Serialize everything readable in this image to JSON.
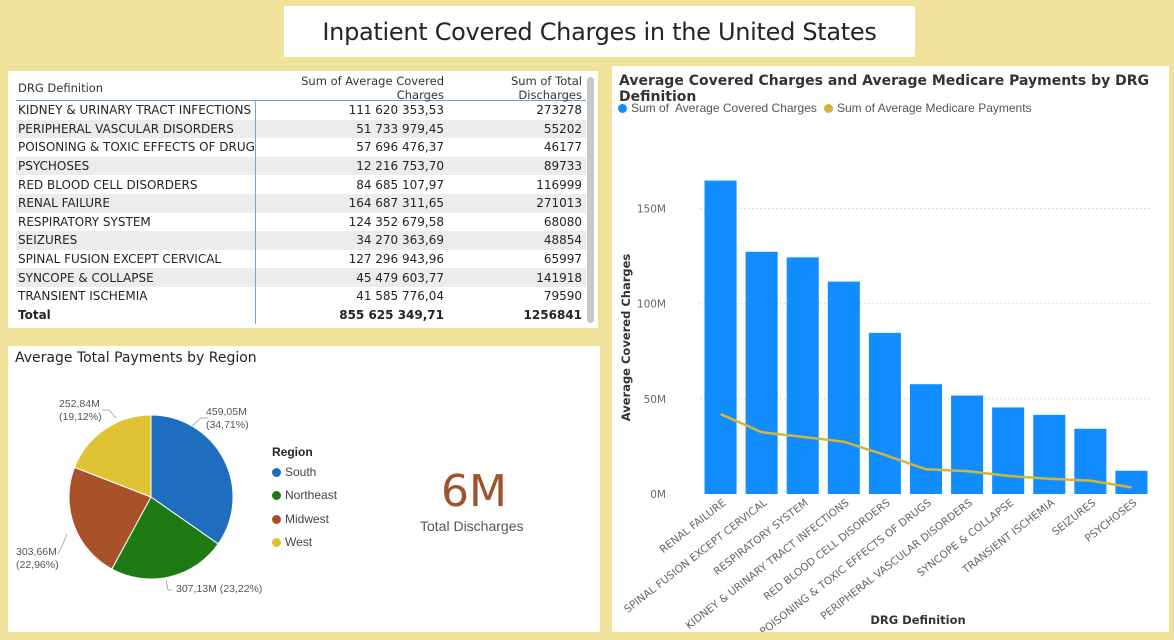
{
  "title": "Inpatient Covered Charges in the United States",
  "table": {
    "headers": [
      "DRG Definition",
      "Sum of Average Covered Charges",
      "Sum of Total Discharges"
    ],
    "rows": [
      [
        "KIDNEY & URINARY TRACT INFECTIONS",
        "111 620 353,53",
        "273278"
      ],
      [
        "PERIPHERAL VASCULAR DISORDERS",
        "51 733 979,45",
        "55202"
      ],
      [
        "POISONING & TOXIC EFFECTS OF DRUGS",
        "57 696 476,37",
        "46177"
      ],
      [
        "PSYCHOSES",
        "12 216 753,70",
        "89733"
      ],
      [
        "RED BLOOD CELL DISORDERS",
        "84 685 107,97",
        "116999"
      ],
      [
        "RENAL FAILURE",
        "164 687 311,65",
        "271013"
      ],
      [
        "RESPIRATORY SYSTEM",
        "124 352 679,58",
        "68080"
      ],
      [
        "SEIZURES",
        "34 270 363,69",
        "48854"
      ],
      [
        "SPINAL FUSION EXCEPT CERVICAL",
        "127 296 943,96",
        "65997"
      ],
      [
        "SYNCOPE & COLLAPSE",
        "45 479 603,77",
        "141918"
      ],
      [
        "TRANSIENT ISCHEMIA",
        "41 585 776,04",
        "79590"
      ]
    ],
    "total": [
      "Total",
      "855 625 349,71",
      "1256841"
    ]
  },
  "pie": {
    "title": "Average Total Payments by Region",
    "legend_title": "Region",
    "slices": [
      {
        "name": "South",
        "label_value": "459,05M",
        "label_pct": "(34,71%)",
        "value": 459.05,
        "color": "#1f6dbf"
      },
      {
        "name": "Northeast",
        "label_value": "307,13M (23,22%)",
        "label_pct": "",
        "value": 307.13,
        "color": "#1e7a12"
      },
      {
        "name": "Midwest",
        "label_value": "303,66M",
        "label_pct": "(22,96%)",
        "value": 303.66,
        "color": "#a9522a"
      },
      {
        "name": "West",
        "label_value": "252,84M",
        "label_pct": "(19,12%)",
        "value": 252.84,
        "color": "#e0c235"
      }
    ]
  },
  "kpi": {
    "value": "6M",
    "label": "Total Discharges"
  },
  "chart_data": {
    "type": "bar",
    "title": "Average Covered Charges and Average Medicare Payments by DRG Definition",
    "xlabel": "DRG Definition",
    "ylabel": "Average Covered Charges",
    "ylim": [
      0,
      175000000
    ],
    "yticks": [
      0,
      50000000,
      100000000,
      150000000
    ],
    "ytick_labels": [
      "0M",
      "50M",
      "100M",
      "150M"
    ],
    "categories": [
      "RENAL FAILURE",
      "SPINAL FUSION EXCEPT CERVICAL",
      "RESPIRATORY SYSTEM",
      "KIDNEY & URINARY TRACT INFECTIONS",
      "RED BLOOD CELL DISORDERS",
      "POISONING & TOXIC EFFECTS OF DRUGS",
      "PERIPHERAL VASCULAR DISORDERS",
      "SYNCOPE & COLLAPSE",
      "TRANSIENT ISCHEMIA",
      "SEIZURES",
      "PSYCHOSES"
    ],
    "series": [
      {
        "name": "Sum of  Average Covered Charges",
        "type": "bar",
        "color": "#118dff",
        "values": [
          164687311.65,
          127296943.96,
          124352679.58,
          111620353.53,
          84685107.97,
          57696476.37,
          51733979.45,
          45479603.77,
          41585776.04,
          34270363.69,
          12216753.7
        ]
      },
      {
        "name": "Sum of Average Medicare Payments",
        "type": "line",
        "color": "#d4b53a",
        "values": [
          42000000,
          32500000,
          30000000,
          27500000,
          20500000,
          13000000,
          12000000,
          9500000,
          8000000,
          7000000,
          3500000
        ]
      }
    ],
    "legend_position": "top-left",
    "grid": true
  }
}
